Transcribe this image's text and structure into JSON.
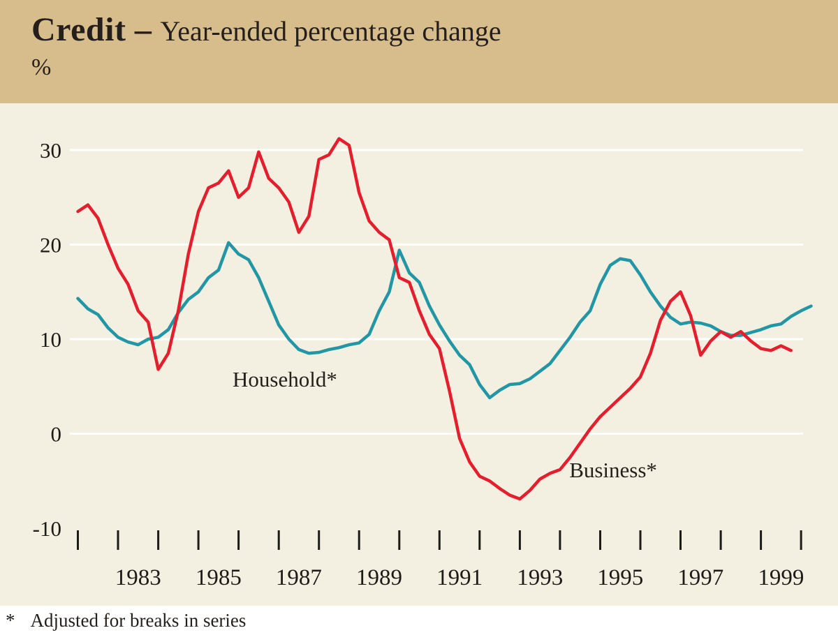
{
  "header": {
    "title_bold": "Credit –",
    "title_rest": "Year-ended percentage change",
    "unit_label": "%"
  },
  "footnote": {
    "marker": "*",
    "text": "Adjusted for breaks in series"
  },
  "colors": {
    "page_bg": "#ffffff",
    "band_bg": "#d8bd8c",
    "plot_bg": "#f3efe1",
    "grid": "#ffffff",
    "axis": "#1d1b18",
    "axis_text": "#1d1b18",
    "text": "#241f1b",
    "household": "#2296a4",
    "business": "#e41f2d"
  },
  "chart_data": {
    "type": "line",
    "title": "Credit – Year-ended percentage change",
    "ylabel": "%",
    "ylim": [
      -10,
      30
    ],
    "yticks": [
      30,
      20,
      10,
      0,
      -10
    ],
    "gridlines_at": [
      0,
      10,
      20,
      30
    ],
    "xlim": [
      1981.3,
      1999.55
    ],
    "xticks": {
      "start": 1981.5,
      "end": 1999.5,
      "step": 1
    },
    "xticklabels": [
      1983,
      1985,
      1987,
      1989,
      1991,
      1993,
      1995,
      1997,
      1999
    ],
    "legend_position": "inline-annotations",
    "grid": true,
    "footnote": "* Adjusted for breaks in series",
    "series": [
      {
        "name": "Household*",
        "color_key": "household",
        "label_x": 1985.35,
        "label_y": 5.0,
        "x_start": 1981.5,
        "x_step": 0.25,
        "values": [
          14.3,
          13.2,
          12.6,
          11.2,
          10.2,
          9.7,
          9.4,
          10.0,
          10.2,
          11.0,
          12.8,
          14.2,
          15.0,
          16.5,
          17.3,
          20.2,
          19.0,
          18.4,
          16.5,
          14.0,
          11.5,
          10.0,
          8.9,
          8.5,
          8.6,
          8.9,
          9.1,
          9.4,
          9.6,
          10.5,
          13.0,
          15.0,
          19.4,
          17.0,
          16.0,
          13.5,
          11.5,
          9.8,
          8.3,
          7.3,
          5.2,
          3.8,
          4.6,
          5.2,
          5.3,
          5.8,
          6.6,
          7.4,
          8.8,
          10.2,
          11.8,
          13.0,
          15.8,
          17.8,
          18.5,
          18.3,
          16.8,
          15.0,
          13.5,
          12.3,
          11.6,
          11.8,
          11.7,
          11.4,
          10.8,
          10.4,
          10.4,
          10.7,
          11.0,
          11.4,
          11.6,
          12.4,
          13.0,
          13.5
        ]
      },
      {
        "name": "Business*",
        "color_key": "business",
        "label_x": 1993.73,
        "label_y": -4.6,
        "x_start": 1981.5,
        "x_step": 0.25,
        "values": [
          23.5,
          24.2,
          22.8,
          20.0,
          17.5,
          15.8,
          13.0,
          11.8,
          6.8,
          8.5,
          13.0,
          19.0,
          23.5,
          26.0,
          26.5,
          27.8,
          25.0,
          26.0,
          29.8,
          27.0,
          26.0,
          24.5,
          21.3,
          23.0,
          29.0,
          29.5,
          31.2,
          30.5,
          25.5,
          22.5,
          21.3,
          20.5,
          16.5,
          16.0,
          13.0,
          10.5,
          9.0,
          4.5,
          -0.5,
          -3.0,
          -4.5,
          -5.0,
          -5.8,
          -6.5,
          -6.9,
          -6.0,
          -4.8,
          -4.2,
          -3.8,
          -2.5,
          -1.0,
          0.5,
          1.8,
          2.8,
          3.8,
          4.8,
          6.0,
          8.5,
          12.0,
          14.0,
          15.0,
          12.5,
          8.3,
          9.8,
          10.8,
          10.2,
          10.8,
          9.8,
          9.0,
          8.8,
          9.3,
          8.8
        ]
      }
    ]
  }
}
